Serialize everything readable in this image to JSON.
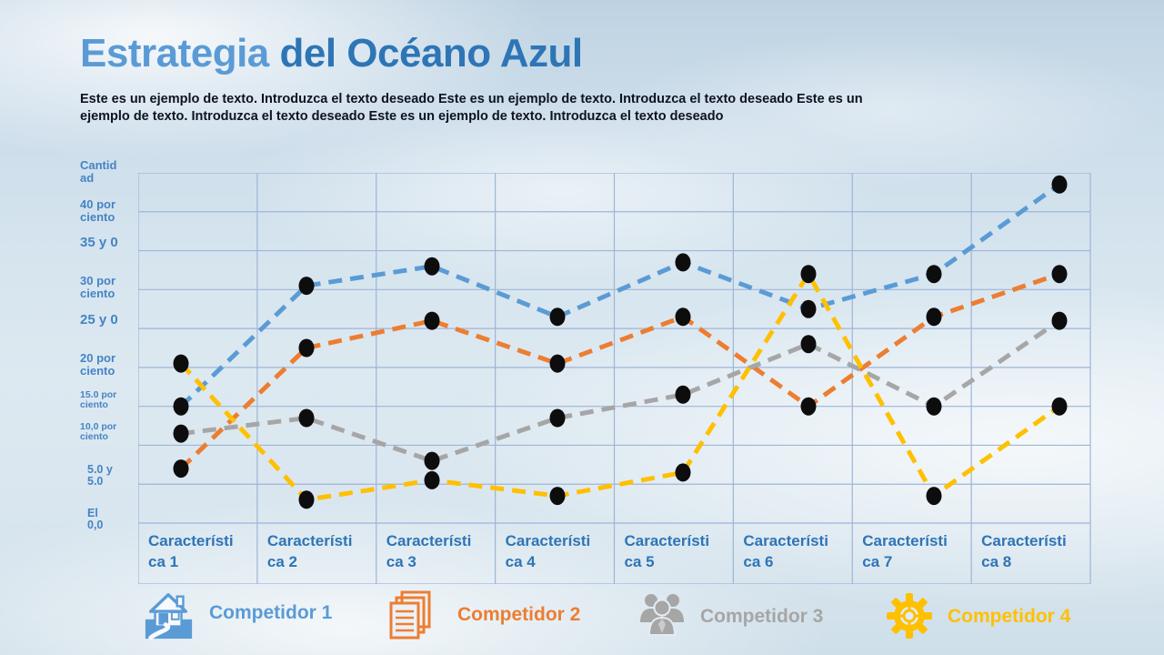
{
  "slide": {
    "title_part1": "Estrategia ",
    "title_part2": "del Océano Azul",
    "subtitle": "Este es un ejemplo de texto. Introduzca el texto deseado Este es un ejemplo de texto. Introduzca el texto deseado Este es un ejemplo de texto. Introduzca el texto deseado Este es un ejemplo de texto. Introduzca el texto deseado"
  },
  "chart_data": {
    "type": "line",
    "title": "",
    "y_axis": {
      "title": "Cantidad",
      "tick_labels": [
        "40 por ciento",
        "35 y 0",
        "30 por ciento",
        "25 y 0",
        "20 por ciento",
        "15.0 por ciento",
        "10,0 por ciento",
        "5.0 y 5.0",
        "El 0,0"
      ],
      "tick_values": [
        40,
        35,
        30,
        25,
        20,
        15,
        10,
        5,
        0
      ],
      "range": [
        0,
        45
      ],
      "grid_step": 5
    },
    "categories": [
      "Característica 1",
      "Característica 2",
      "Característica 3",
      "Característica 4",
      "Característica 5",
      "Característica 6",
      "Característica 7",
      "Característica 8"
    ],
    "categories_wrapped": [
      "Característi\nca 1",
      "Característi\nca 2",
      "Característi\nca 3",
      "Característi\nca 4",
      "Característi\nca 5",
      "Característi\nca 6",
      "Característi\nca 7",
      "Característi\nca 8"
    ],
    "series": [
      {
        "name": "Competidor 1",
        "color": "#5B9BD5",
        "values": [
          15,
          30.5,
          33,
          26.5,
          33.5,
          27.5,
          32,
          43.5
        ]
      },
      {
        "name": "Competidor 2",
        "color": "#ED7D31",
        "values": [
          7,
          22.5,
          26,
          20.5,
          26.5,
          15,
          26.5,
          32
        ]
      },
      {
        "name": "Competidor 3",
        "color": "#A6A6A6",
        "values": [
          11.5,
          13.5,
          8,
          13.5,
          16.5,
          23,
          15,
          26
        ]
      },
      {
        "name": "Competidor 4",
        "color": "#FFC000",
        "values": [
          20.5,
          3,
          5.5,
          3.5,
          6.5,
          32,
          3.5,
          15
        ]
      }
    ],
    "line_style": "dashed",
    "marker": {
      "shape": "circle",
      "color": "#0D0D0D"
    },
    "grid": true,
    "grid_color": "#9FB4D8",
    "legend_position": "bottom"
  },
  "legend": {
    "items": [
      {
        "label": "Competidor 1",
        "icon": "house-icon",
        "color": "#5B9BD5"
      },
      {
        "label": "Competidor 2",
        "icon": "documents-icon",
        "color": "#ED7D31"
      },
      {
        "label": "Competidor 3",
        "icon": "people-icon",
        "color": "#A6A6A6"
      },
      {
        "label": "Competidor 4",
        "icon": "gear-icon",
        "color": "#FFC000"
      }
    ]
  }
}
